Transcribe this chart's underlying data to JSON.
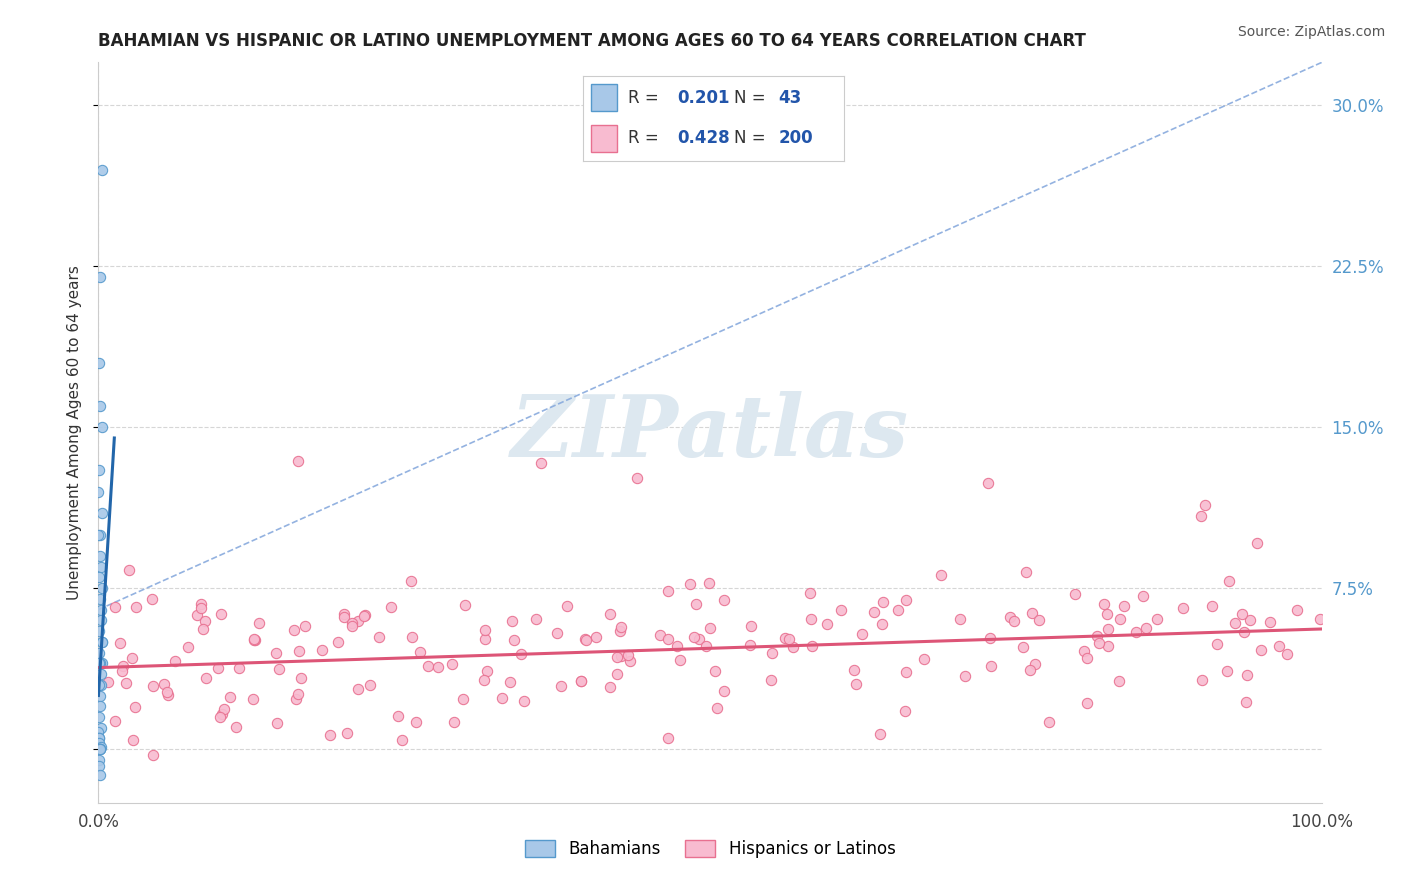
{
  "title": "BAHAMIAN VS HISPANIC OR LATINO UNEMPLOYMENT AMONG AGES 60 TO 64 YEARS CORRELATION CHART",
  "source": "Source: ZipAtlas.com",
  "ylabel": "Unemployment Among Ages 60 to 64 years",
  "xlim": [
    0,
    1.0
  ],
  "ylim": [
    -0.025,
    0.32
  ],
  "yticks": [
    0.0,
    0.075,
    0.15,
    0.225,
    0.3
  ],
  "ytick_labels": [
    "",
    "7.5%",
    "15.0%",
    "22.5%",
    "30.0%"
  ],
  "legend_bahamian_R": "0.201",
  "legend_bahamian_N": "43",
  "legend_hispanic_R": "0.428",
  "legend_hispanic_N": "200",
  "bahamian_color": "#a8c8e8",
  "bahamian_edge_color": "#5599cc",
  "bahamian_line_color": "#2266aa",
  "hispanic_color": "#f8bbd0",
  "hispanic_edge_color": "#e87090",
  "hispanic_line_color": "#dd5577",
  "dashed_line_color": "#88aadd",
  "watermark_color": "#dde8f0",
  "background_color": "#ffffff",
  "grid_color": "#cccccc",
  "title_color": "#222222",
  "tick_label_color": "#5599cc",
  "legend_text_color": "#333333",
  "legend_value_color": "#2255aa",
  "source_color": "#555555"
}
